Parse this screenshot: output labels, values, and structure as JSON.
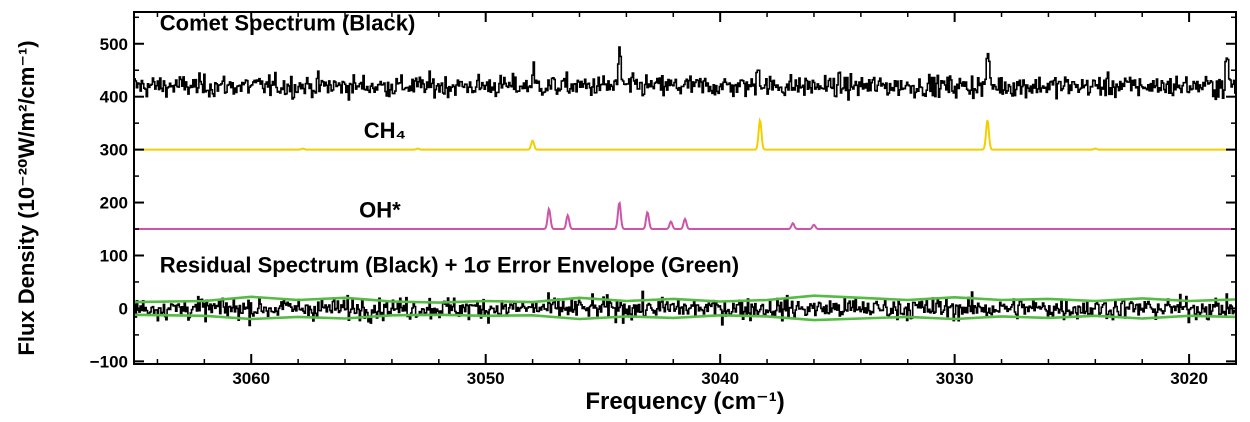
{
  "chart_data": {
    "type": "line",
    "title": "",
    "xlabel": "Frequency (cm⁻¹)",
    "ylabel": "Flux Density (10⁻²⁰W/m²/cm⁻¹)",
    "xlim": [
      3065,
      3018
    ],
    "ylim": [
      -105,
      560
    ],
    "x_ticks": [
      3060,
      3050,
      3040,
      3030,
      3020
    ],
    "y_ticks": [
      -100,
      0,
      100,
      200,
      300,
      400,
      500
    ],
    "x_tick_labels": [
      "3060",
      "3050",
      "3040",
      "3030",
      "3020"
    ],
    "y_tick_labels": [
      "−100",
      "0",
      "100",
      "200",
      "300",
      "400",
      "500"
    ],
    "grid": false,
    "annotations": [
      {
        "text": "Comet Spectrum (Black)",
        "x": 3063.9,
        "y": 525
      },
      {
        "text": "CH₄",
        "x": 3055.2,
        "y": 322
      },
      {
        "text": "OH*",
        "x": 3055.4,
        "y": 172
      },
      {
        "text": "Residual Spectrum (Black) + 1σ Error Envelope (Green)",
        "x": 3063.9,
        "y": 68
      }
    ],
    "series": [
      {
        "name": "Comet Spectrum (Black)",
        "color": "#000000",
        "style": "step",
        "x_range": [
          3065,
          3018
        ],
        "baseline": 420,
        "noise_sigma": 17,
        "features": [
          {
            "x": 3044.3,
            "y": 495
          },
          {
            "x": 3038.4,
            "y": 470
          },
          {
            "x": 3028.6,
            "y": 488
          },
          {
            "x": 3048.0,
            "y": 450
          },
          {
            "x": 3018.4,
            "y": 480
          }
        ]
      },
      {
        "name": "CH4",
        "color": "#f2d000",
        "style": "line",
        "baseline": 300,
        "peaks": [
          {
            "x": 3057.8,
            "y": 302
          },
          {
            "x": 3052.9,
            "y": 302
          },
          {
            "x": 3048.0,
            "y": 317
          },
          {
            "x": 3038.3,
            "y": 356
          },
          {
            "x": 3028.6,
            "y": 356
          },
          {
            "x": 3024.0,
            "y": 302
          }
        ]
      },
      {
        "name": "OH*",
        "color": "#cc55aa",
        "style": "line",
        "baseline": 150,
        "peaks": [
          {
            "x": 3047.3,
            "y": 188
          },
          {
            "x": 3046.5,
            "y": 176
          },
          {
            "x": 3044.3,
            "y": 200
          },
          {
            "x": 3043.1,
            "y": 182
          },
          {
            "x": 3042.1,
            "y": 164
          },
          {
            "x": 3041.5,
            "y": 169
          },
          {
            "x": 3036.9,
            "y": 161
          },
          {
            "x": 3036.0,
            "y": 158
          }
        ]
      },
      {
        "name": "Residual Spectrum (Black)",
        "color": "#000000",
        "style": "step",
        "x_range": [
          3065,
          3018
        ],
        "baseline": 0,
        "noise_sigma": 17
      },
      {
        "name": "1σ Error Envelope (Green)",
        "color": "#55bb44",
        "style": "line",
        "upper": {
          "x": [
            3065,
            3062,
            3060,
            3058,
            3056,
            3054,
            3052,
            3050,
            3048,
            3046,
            3044,
            3042,
            3040,
            3038,
            3036,
            3034,
            3032,
            3030,
            3028,
            3026,
            3024,
            3022,
            3020,
            3018
          ],
          "y": [
            12,
            14,
            22,
            16,
            20,
            13,
            11,
            14,
            12,
            20,
            14,
            18,
            13,
            16,
            24,
            20,
            16,
            21,
            16,
            18,
            14,
            19,
            14,
            17
          ]
        },
        "lower": {
          "x": [
            3065,
            3062,
            3060,
            3058,
            3056,
            3054,
            3052,
            3050,
            3048,
            3046,
            3044,
            3042,
            3040,
            3038,
            3036,
            3034,
            3032,
            3030,
            3028,
            3026,
            3024,
            3022,
            3020,
            3018
          ],
          "y": [
            -12,
            -14,
            -20,
            -16,
            -19,
            -13,
            -12,
            -14,
            -13,
            -20,
            -15,
            -18,
            -13,
            -15,
            -22,
            -19,
            -16,
            -20,
            -15,
            -18,
            -14,
            -19,
            -14,
            -16
          ]
        }
      }
    ]
  }
}
